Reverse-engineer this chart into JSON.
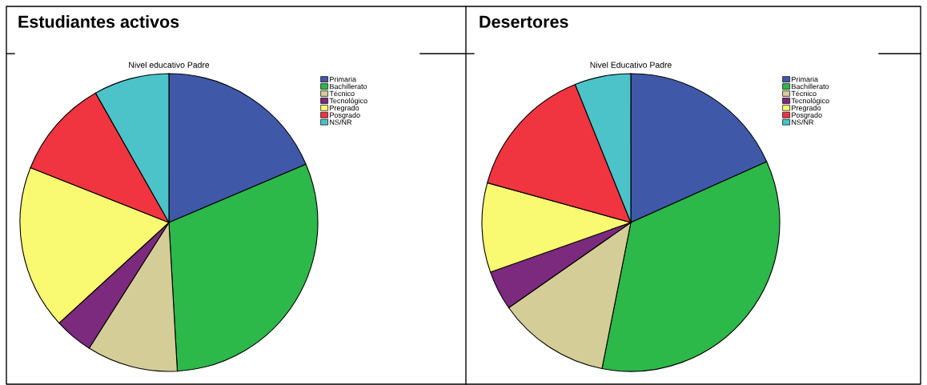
{
  "chart_data": [
    {
      "type": "pie",
      "title": "Estudiantes activos",
      "subtitle": "Nivel educativo Padre",
      "legend": "top right",
      "categories": [
        "Primaria",
        "Bachillerato",
        "Técnico",
        "Tecnológico",
        "Pregrado",
        "Posgrado",
        "NS/NR"
      ],
      "values": [
        18.6,
        30.5,
        9.9,
        4.2,
        17.8,
        10.8,
        8.2
      ],
      "colors": [
        "#3f58a8",
        "#2db84a",
        "#d4cd97",
        "#7b2a7e",
        "#fafa72",
        "#f03540",
        "#4bc3c9"
      ]
    },
    {
      "type": "pie",
      "title": "Desertores",
      "subtitle": "Nivel Educativo Padre",
      "legend": "top right",
      "categories": [
        "Primaria",
        "Bachillerato",
        "Técnico",
        "Tecnológico",
        "Pregrado",
        "Posgrado",
        "NS/NR"
      ],
      "values": [
        18.3,
        34.8,
        12.2,
        4.3,
        9.7,
        14.6,
        6.1
      ],
      "colors": [
        "#3f58a8",
        "#2db84a",
        "#d4cd97",
        "#7b2a7e",
        "#fafa72",
        "#f03540",
        "#4bc3c9"
      ]
    }
  ]
}
